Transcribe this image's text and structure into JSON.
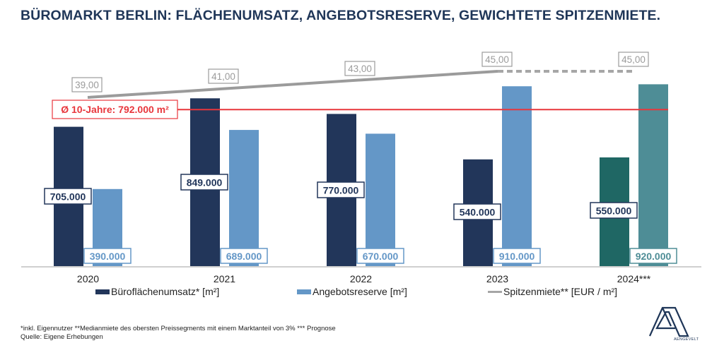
{
  "title": "BÜROMARKT BERLIN: FLÄCHENUMSATZ, ANGEBOTSRESERVE, GEWICHTETE SPITZENMIETE.",
  "chart_data": {
    "type": "bar",
    "title": "BÜROMARKT BERLIN: FLÄCHENUMSATZ, ANGEBOTSRESERVE, GEWICHTETE SPITZENMIETE.",
    "categories": [
      "2020",
      "2021",
      "2022",
      "2023",
      "2024***"
    ],
    "series": [
      {
        "name": "Büroflächenumsatz* [m²]",
        "type": "bar",
        "values": [
          705000,
          849000,
          770000,
          540000,
          550000
        ],
        "labels": [
          "705.000",
          "849.000",
          "770.000",
          "540.000",
          "550.000"
        ],
        "color": "#22365a",
        "forecast_color": "#1f6764"
      },
      {
        "name": "Angebotsreserve [m²]",
        "type": "bar",
        "values": [
          390000,
          689000,
          670000,
          910000,
          920000
        ],
        "labels": [
          "390.000",
          "689.000",
          "670.000",
          "910.000",
          "920.000"
        ],
        "color": "#6497c7",
        "forecast_color": "#4e8d96"
      },
      {
        "name": "Spitzenmiete** [EUR / m²]",
        "type": "line",
        "values": [
          39.0,
          41.0,
          43.0,
          45.0,
          45.0
        ],
        "labels": [
          "39,00",
          "41,00",
          "43,00",
          "45,00",
          "45,00"
        ],
        "color": "#9b9b9b",
        "dashed_from_index": 3
      }
    ],
    "reference_line": {
      "label": "Ø 10-Jahre: 792.000 m²",
      "value": 792000,
      "color": "#e8363c"
    },
    "forecast_index": 4,
    "xlabel": "",
    "ylabel": "",
    "ylim": [
      0,
      1000000
    ],
    "grid": false,
    "legend": "bottom"
  },
  "legend": {
    "items": [
      {
        "label": "Büroflächenumsatz* [m²]",
        "color": "#22365a"
      },
      {
        "label": "Angebotsreserve [m²]",
        "color": "#6497c7"
      },
      {
        "label": "Spitzenmiete** [EUR / m²]",
        "color": "#a6a6a6"
      }
    ]
  },
  "footnote": {
    "line1": "*inkl. Eigennutzer **Medianmiete des obersten Preissegments mit einem Marktanteil von 3% *** Prognose",
    "line2": "Quelle: Eigene Erhebungen"
  },
  "logo": {
    "text": "AENGEVELT",
    "color": "#1f3658"
  }
}
